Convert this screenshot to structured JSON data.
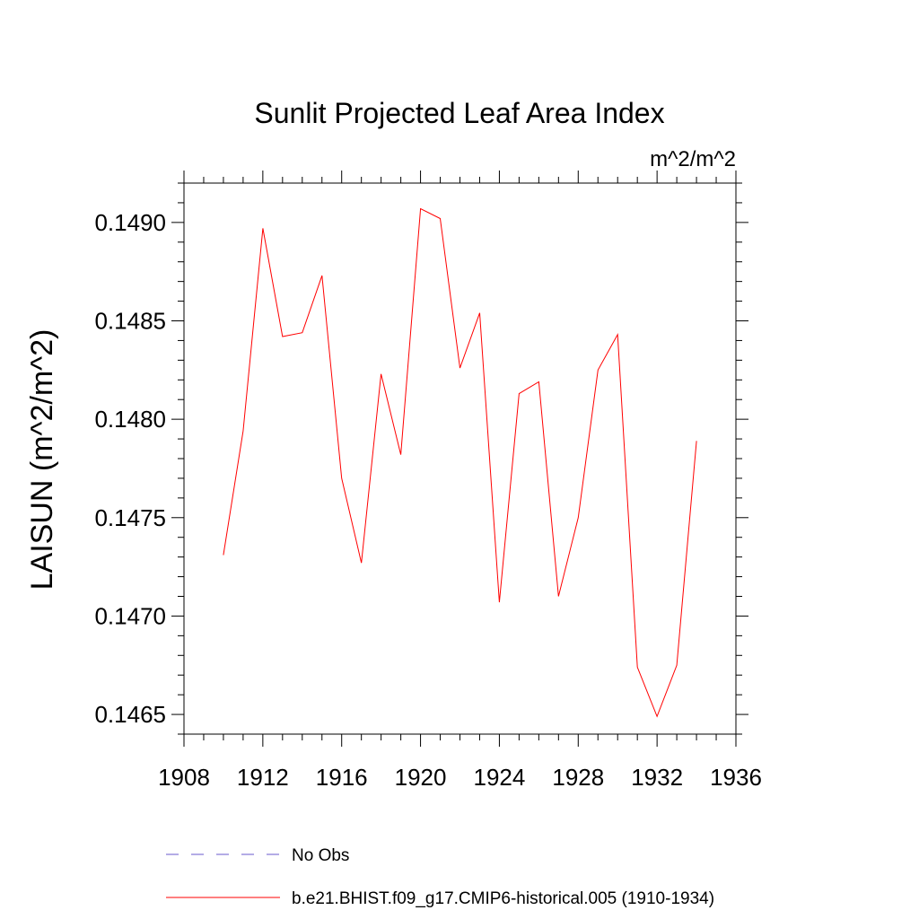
{
  "chart_data": {
    "type": "line",
    "title": "Sunlit Projected Leaf Area Index",
    "units": "m^2/m^2",
    "xlabel": "",
    "ylabel": "LAISUN  (m^2/m^2)",
    "xlim": [
      1908,
      1936
    ],
    "ylim": [
      0.1464,
      0.1492
    ],
    "xticks": [
      1908,
      1912,
      1916,
      1920,
      1924,
      1928,
      1932,
      1936
    ],
    "xtick_labels": [
      "1908",
      "1912",
      "1916",
      "1920",
      "1924",
      "1928",
      "1932",
      "1936"
    ],
    "yticks": [
      0.1465,
      0.147,
      0.1475,
      0.148,
      0.1485,
      0.149
    ],
    "ytick_labels": [
      "0.1465",
      "0.1470",
      "0.1475",
      "0.1480",
      "0.1485",
      "0.1490"
    ],
    "grid": false,
    "legend_position": "bottom",
    "series": [
      {
        "name": "No Obs",
        "color": "#6a5acd",
        "style": "dashed",
        "x": [],
        "y": []
      },
      {
        "name": "b.e21.BHIST.f09_g17.CMIP6-historical.005 (1910-1934)",
        "color": "#ff0000",
        "style": "solid",
        "x": [
          1910,
          1911,
          1912,
          1913,
          1914,
          1915,
          1916,
          1917,
          1918,
          1919,
          1920,
          1921,
          1922,
          1923,
          1924,
          1925,
          1926,
          1927,
          1928,
          1929,
          1930,
          1931,
          1932,
          1933,
          1934
        ],
        "y": [
          0.14731,
          0.14794,
          0.14897,
          0.14842,
          0.14844,
          0.14873,
          0.1477,
          0.14727,
          0.14823,
          0.14782,
          0.14907,
          0.14902,
          0.14826,
          0.14854,
          0.14707,
          0.14813,
          0.14819,
          0.1471,
          0.1475,
          0.14825,
          0.14843,
          0.14674,
          0.14649,
          0.14675,
          0.14789
        ]
      }
    ]
  }
}
